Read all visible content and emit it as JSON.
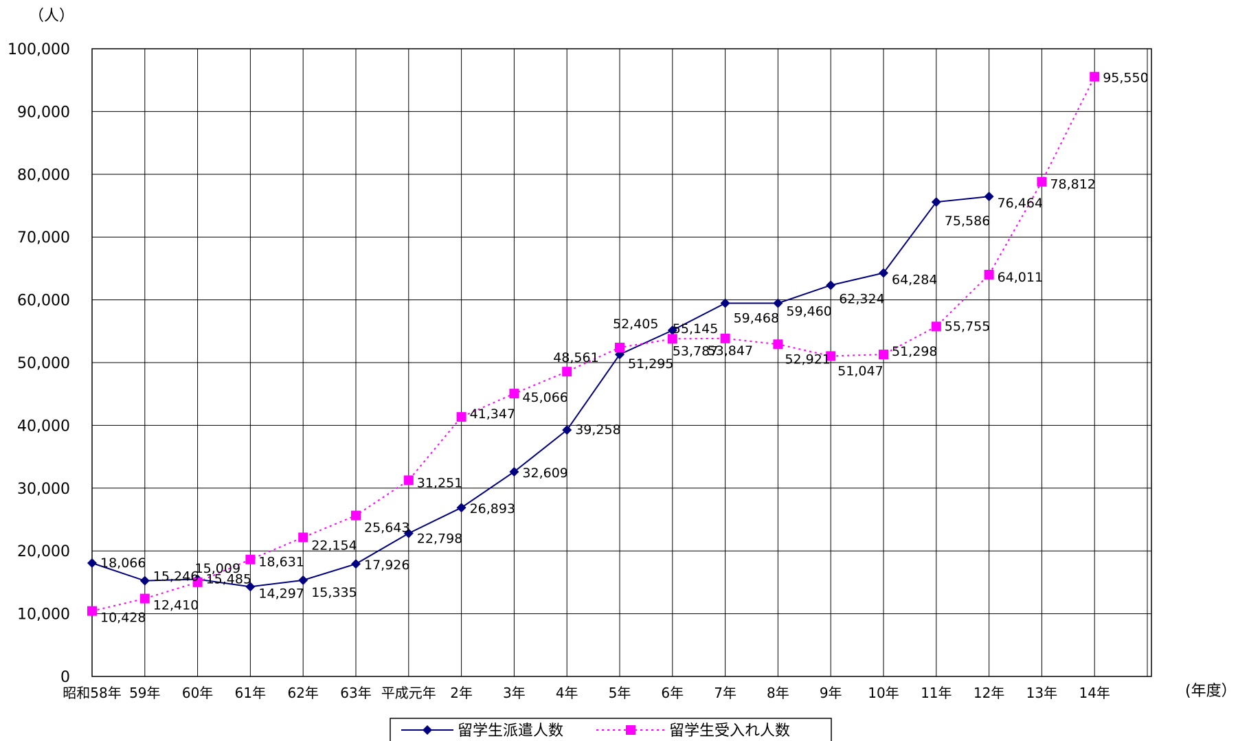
{
  "chart_data": {
    "type": "line",
    "title": "",
    "ylabel": "（人）",
    "xlabel": "(年度）",
    "ylim": [
      0,
      100000
    ],
    "ytick_step": 10000,
    "yticks": [
      "0",
      "10,000",
      "20,000",
      "30,000",
      "40,000",
      "50,000",
      "60,000",
      "70,000",
      "80,000",
      "90,000",
      "100,000"
    ],
    "grid": true,
    "legend_position": "bottom",
    "categories": [
      "昭和58年",
      "59年",
      "60年",
      "61年",
      "62年",
      "63年",
      "平成元年",
      "2年",
      "3年",
      "4年",
      "5年",
      "6年",
      "7年",
      "8年",
      "9年",
      "10年",
      "11年",
      "12年",
      "13年",
      "14年"
    ],
    "series": [
      {
        "name": "留学生派遣人数",
        "color": "#000080",
        "marker": "diamond",
        "line_style": "solid",
        "values": [
          18066,
          15246,
          15485,
          14297,
          15335,
          17926,
          22798,
          26893,
          32609,
          39258,
          51295,
          55145,
          59468,
          59460,
          62324,
          64284,
          75586,
          76464,
          null,
          null
        ],
        "labels": [
          "18,066",
          "15,246",
          "15,485",
          "14,297",
          "15,335",
          "17,926",
          "22,798",
          "26,893",
          "32,609",
          "39,258",
          "51,295",
          "55,145",
          "59,468",
          "59,460",
          "62,324",
          "64,284",
          "75,586",
          "76,464",
          null,
          null
        ]
      },
      {
        "name": "留学生受入れ人数",
        "color": "#ff00ff",
        "marker": "square",
        "line_style": "dotted",
        "values": [
          10428,
          12410,
          15009,
          18631,
          22154,
          25643,
          31251,
          41347,
          45066,
          48561,
          52405,
          53787,
          53847,
          52921,
          51047,
          51298,
          55755,
          64011,
          78812,
          95550
        ],
        "labels": [
          "10,428",
          "12,410",
          "15,009",
          "18,631",
          "22,154",
          "25,643",
          "31,251",
          "41,347",
          "45,066",
          "48,561",
          "52,405",
          "53,787",
          "53,847",
          "52,921",
          "51,047",
          "51,298",
          "55,755",
          "64,011",
          "78,812",
          "95,550"
        ]
      }
    ]
  }
}
